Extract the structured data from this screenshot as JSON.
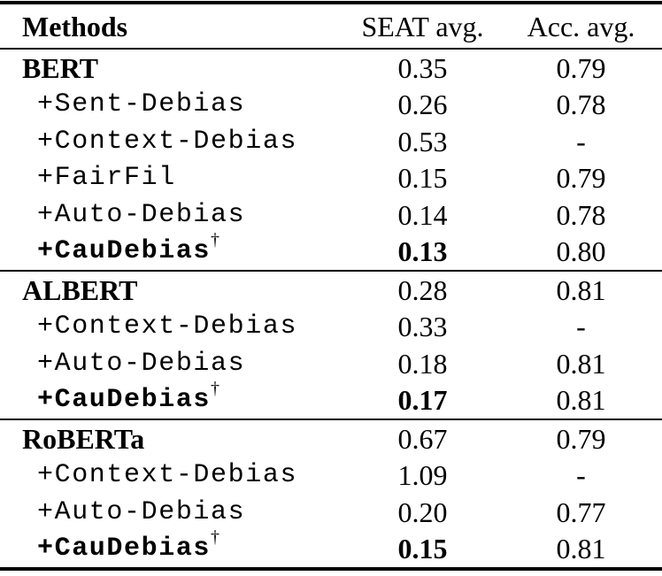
{
  "table": {
    "header": {
      "methods": "Methods",
      "seat": "SEAT avg.",
      "acc": "Acc. avg."
    },
    "sections": [
      {
        "rows": [
          {
            "method": "BERT",
            "seat": "0.35",
            "acc": "0.79"
          },
          {
            "method": "+Sent-Debias",
            "seat": "0.26",
            "acc": "0.78"
          },
          {
            "method": "+Context-Debias",
            "seat": "0.53",
            "acc": "-"
          },
          {
            "method": "+FairFil",
            "seat": "0.15",
            "acc": "0.79"
          },
          {
            "method": "+Auto-Debias",
            "seat": "0.14",
            "acc": "0.78"
          },
          {
            "method": "+CauDebias",
            "sup": "†",
            "seat": "0.13",
            "acc": "0.80"
          }
        ]
      },
      {
        "rows": [
          {
            "method": "ALBERT",
            "seat": "0.28",
            "acc": "0.81"
          },
          {
            "method": "+Context-Debias",
            "seat": "0.33",
            "acc": "-"
          },
          {
            "method": "+Auto-Debias",
            "seat": "0.18",
            "acc": "0.81"
          },
          {
            "method": "+CauDebias",
            "sup": "†",
            "seat": "0.17",
            "acc": "0.81"
          }
        ]
      },
      {
        "rows": [
          {
            "method": "RoBERTa",
            "seat": "0.67",
            "acc": "0.79"
          },
          {
            "method": "+Context-Debias",
            "seat": "1.09",
            "acc": "-"
          },
          {
            "method": "+Auto-Debias",
            "seat": "0.20",
            "acc": "0.77"
          },
          {
            "method": "+CauDebias",
            "sup": "†",
            "seat": "0.15",
            "acc": "0.81"
          }
        ]
      }
    ]
  }
}
